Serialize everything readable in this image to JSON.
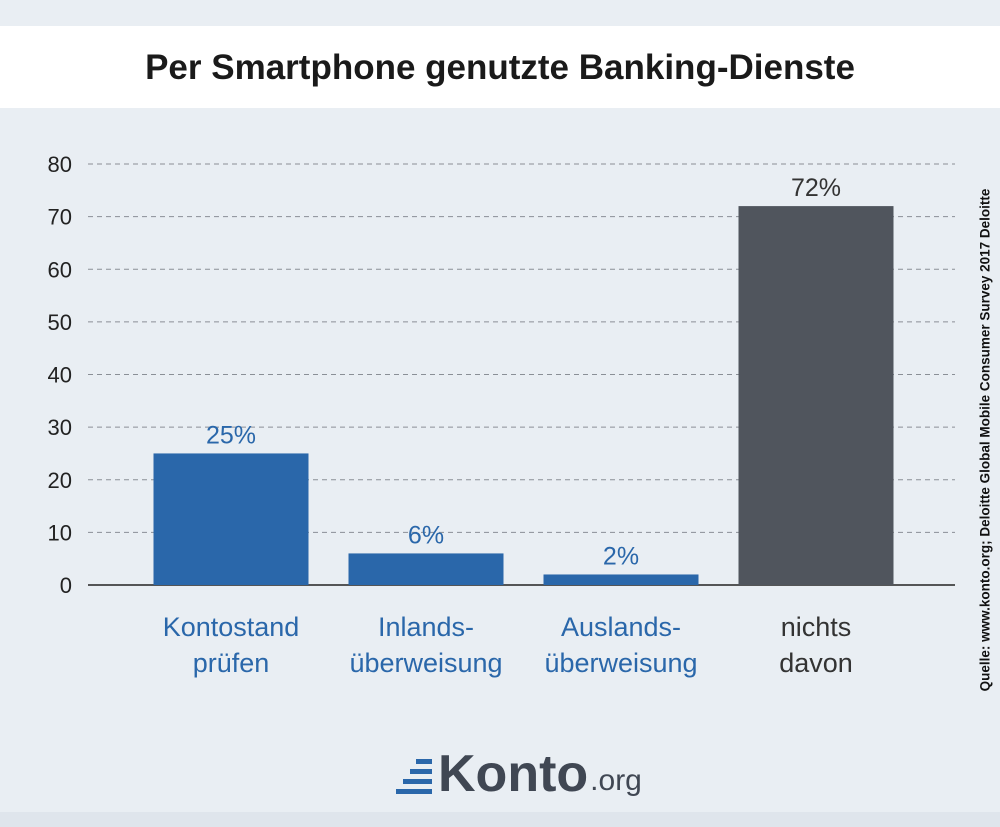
{
  "chart_data": {
    "type": "bar",
    "title": "Per Smartphone genutzte Banking-Dienste",
    "categories": [
      [
        "Kontostand",
        "prüfen"
      ],
      [
        "Inlands-",
        "überweisung"
      ],
      [
        "Auslands-",
        "überweisung"
      ],
      [
        "nichts",
        "davon"
      ]
    ],
    "values": [
      25,
      6,
      2,
      72
    ],
    "data_labels": [
      "25%",
      "6%",
      "2%",
      "72%"
    ],
    "bar_colors": [
      "#2a67aa",
      "#2a67aa",
      "#2a67aa",
      "#50555d"
    ],
    "label_colors": [
      "#2a67aa",
      "#2a67aa",
      "#2a67aa",
      "#333333"
    ],
    "ylim": [
      0,
      80
    ],
    "yticks": [
      0,
      10,
      20,
      30,
      40,
      50,
      60,
      70,
      80
    ],
    "grid": true,
    "xlabel": "",
    "ylabel": ""
  },
  "source": "Quelle: www.konto.org; Deloitte Global Mobile Consumer Survey 2017 Deloitte",
  "logo": {
    "name": "Konto",
    "suffix": ".org"
  },
  "colors": {
    "background": "#e9eef3",
    "accent": "#2a67aa",
    "dark": "#50555d"
  }
}
